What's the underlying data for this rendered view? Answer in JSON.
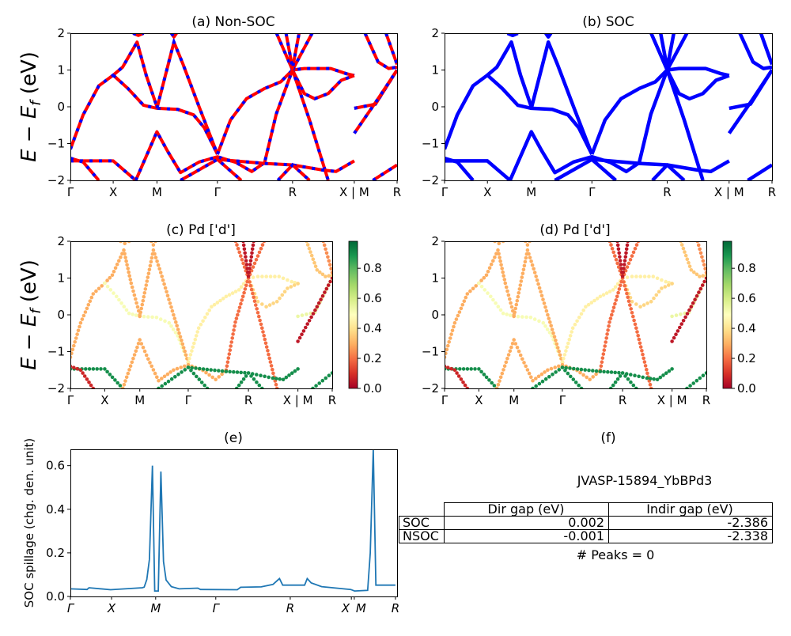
{
  "figure": {
    "energy_ylabel": {
      "main": "E − E",
      "sub": "f",
      "unit": " (eV)"
    }
  },
  "chart_data": {
    "kpath": {
      "labels": [
        "Γ",
        "X",
        "M",
        "Γ",
        "R",
        "X | M",
        "R"
      ],
      "positions": [
        0,
        0.131,
        0.265,
        0.45,
        0.68,
        0.869,
        1
      ]
    },
    "energy_axis": {
      "ylim": [
        -2,
        2
      ],
      "ticks": [
        "2",
        "1",
        "0",
        "−1",
        "−2"
      ]
    },
    "bands": [
      {
        "weight": 0.3,
        "points": [
          [
            0,
            -1.15
          ],
          [
            0.039,
            -0.22
          ],
          [
            0.087,
            0.57
          ],
          [
            0.131,
            0.86
          ],
          [
            0.16,
            1.08
          ],
          [
            0.204,
            1.76
          ],
          [
            0.232,
            0.86
          ],
          [
            0.265,
            0
          ]
        ]
      },
      {
        "weight": 0.52,
        "points": [
          [
            0.131,
            0.86
          ],
          [
            0.176,
            0.5
          ],
          [
            0.224,
            0.04
          ],
          [
            0.265,
            -0.04
          ],
          [
            0.329,
            -0.07
          ],
          [
            0.377,
            -0.22
          ],
          [
            0.41,
            -0.57
          ],
          [
            0.45,
            -1.29
          ]
        ]
      },
      {
        "weight": 0.3,
        "points": [
          [
            0.265,
            -0.04
          ],
          [
            0.317,
            1.76
          ],
          [
            0.345,
            1.15
          ],
          [
            0.394,
            0
          ],
          [
            0.45,
            -1.29
          ]
        ]
      },
      {
        "weight": 0.45,
        "points": [
          [
            0.45,
            -1.29
          ],
          [
            0.49,
            -0.36
          ],
          [
            0.539,
            0.22
          ],
          [
            0.595,
            0.5
          ],
          [
            0.644,
            0.68
          ],
          [
            0.68,
            1.0
          ],
          [
            0.716,
            1.04
          ],
          [
            0.797,
            1.04
          ],
          [
            0.845,
            0.9
          ],
          [
            0.869,
            0.85
          ]
        ]
      },
      {
        "weight": 0.38,
        "points": [
          [
            0.68,
            1.0
          ],
          [
            0.716,
            0.36
          ],
          [
            0.748,
            0.22
          ],
          [
            0.789,
            0.36
          ],
          [
            0.829,
            0.72
          ],
          [
            0.869,
            0.85
          ]
        ]
      },
      {
        "weight": 0.2,
        "points": [
          [
            0.631,
            2
          ],
          [
            0.68,
            1.0
          ],
          [
            0.732,
            -0.36
          ],
          [
            0.789,
            -2
          ]
        ]
      },
      {
        "weight": 0.2,
        "points": [
          [
            0.74,
            2
          ],
          [
            0.68,
            1.0
          ],
          [
            0.63,
            -0.2
          ],
          [
            0.595,
            -1.5
          ]
        ]
      },
      {
        "weight": 0.05,
        "points": [
          [
            0.66,
            2
          ],
          [
            0.68,
            1.05
          ],
          [
            0.7,
            2
          ]
        ]
      },
      {
        "weight": 0.92,
        "points": [
          [
            0,
            -1.47
          ],
          [
            0.131,
            -1.47
          ],
          [
            0.2,
            -2
          ]
        ]
      },
      {
        "weight": 0.08,
        "points": [
          [
            0,
            -1.4
          ],
          [
            0.039,
            -1.5
          ],
          [
            0.087,
            -2
          ]
        ]
      },
      {
        "weight": 0.3,
        "points": [
          [
            0.2,
            -2
          ],
          [
            0.265,
            -0.68
          ],
          [
            0.297,
            -1.2
          ],
          [
            0.337,
            -1.79
          ],
          [
            0.394,
            -1.5
          ],
          [
            0.45,
            -1.36
          ],
          [
            0.506,
            -1.51
          ],
          [
            0.555,
            -1.76
          ],
          [
            0.591,
            -1.54
          ]
        ]
      },
      {
        "weight": 0.92,
        "points": [
          [
            0.45,
            -1.43
          ],
          [
            0.595,
            -1.54
          ],
          [
            0.68,
            -1.58
          ],
          [
            0.773,
            -1.72
          ],
          [
            0.813,
            -1.76
          ],
          [
            0.869,
            -1.47
          ]
        ]
      },
      {
        "weight": 0.92,
        "points": [
          [
            0.337,
            -2
          ],
          [
            0.45,
            -1.43
          ],
          [
            0.523,
            -2
          ]
        ]
      },
      {
        "weight": 0.55,
        "points": [
          [
            0.869,
            -0.04
          ],
          [
            0.934,
            0.07
          ],
          [
            1,
            1.0
          ]
        ]
      },
      {
        "weight": 0.05,
        "points": [
          [
            0.869,
            -0.72
          ],
          [
            0.942,
            0.22
          ],
          [
            1,
            1.0
          ]
        ]
      },
      {
        "weight": 0.35,
        "points": [
          [
            0.902,
            2
          ],
          [
            0.942,
            1.22
          ],
          [
            0.974,
            1.04
          ],
          [
            1,
            1.08
          ]
        ]
      },
      {
        "weight": 0.25,
        "points": [
          [
            0.966,
            2
          ],
          [
            1,
            1.15
          ]
        ]
      },
      {
        "weight": 0.92,
        "points": [
          [
            0.926,
            -2
          ],
          [
            1,
            -1.58
          ]
        ]
      },
      {
        "weight": 0.92,
        "points": [
          [
            0.635,
            -2
          ],
          [
            0.68,
            -1.58
          ],
          [
            0.732,
            -2
          ]
        ]
      },
      {
        "weight": 0.3,
        "points": [
          [
            0.192,
            2
          ],
          [
            0.208,
            1.94
          ],
          [
            0.224,
            2
          ]
        ]
      },
      {
        "weight": 0.3,
        "points": [
          [
            0.309,
            2
          ],
          [
            0.317,
            1.9
          ],
          [
            0.325,
            2
          ]
        ]
      }
    ],
    "panels": [
      {
        "id": "a",
        "type": "line",
        "title": "(a) Non-SOC",
        "colors": [
          "#ff0000",
          "#0000ff"
        ]
      },
      {
        "id": "b",
        "type": "line",
        "title": "(b) SOC",
        "colors": [
          "#0000ff"
        ]
      },
      {
        "id": "c",
        "type": "scatter",
        "title": "(c)  Pd ['d']",
        "colormap": "RdYlGn",
        "colorbar_ticks": [
          "0.0",
          "0.2",
          "0.4",
          "0.6",
          "0.8"
        ],
        "clim": [
          0,
          0.98
        ]
      },
      {
        "id": "d",
        "type": "scatter",
        "title": "(d) Pd ['d']",
        "colormap": "RdYlGn",
        "colorbar_ticks": [
          "0.0",
          "0.2",
          "0.4",
          "0.6",
          "0.8"
        ],
        "clim": [
          0,
          0.98
        ]
      }
    ],
    "spillage": {
      "type": "line",
      "title": "(e)",
      "ylabel": "SOC spillage (chg. den. unit)",
      "ylim": [
        0,
        0.675
      ],
      "yticks": [
        "0.0",
        "0.2",
        "0.4",
        "0.6"
      ],
      "xtick_labels": [
        "Γ",
        "X",
        "M",
        "Γ",
        "R",
        "X",
        "M",
        "R"
      ],
      "xtick_positions": [
        0,
        0.126,
        0.261,
        0.445,
        0.673,
        0.86,
        0.869,
        0.995
      ],
      "color": "#1f77b4",
      "points": [
        [
          0,
          0.035
        ],
        [
          0.051,
          0.032
        ],
        [
          0.057,
          0.04
        ],
        [
          0.123,
          0.031
        ],
        [
          0.22,
          0.04
        ],
        [
          0.226,
          0.043
        ],
        [
          0.234,
          0.078
        ],
        [
          0.242,
          0.17
        ],
        [
          0.251,
          0.6
        ],
        [
          0.258,
          0.025
        ],
        [
          0.269,
          0.025
        ],
        [
          0.277,
          0.573
        ],
        [
          0.285,
          0.16
        ],
        [
          0.293,
          0.075
        ],
        [
          0.309,
          0.045
        ],
        [
          0.333,
          0.035
        ],
        [
          0.39,
          0.038
        ],
        [
          0.398,
          0.032
        ],
        [
          0.511,
          0.031
        ],
        [
          0.521,
          0.042
        ],
        [
          0.584,
          0.044
        ],
        [
          0.62,
          0.055
        ],
        [
          0.64,
          0.082
        ],
        [
          0.65,
          0.052
        ],
        [
          0.717,
          0.052
        ],
        [
          0.725,
          0.082
        ],
        [
          0.737,
          0.062
        ],
        [
          0.769,
          0.045
        ],
        [
          0.858,
          0.032
        ],
        [
          0.87,
          0.025
        ],
        [
          0.91,
          0.028
        ],
        [
          0.918,
          0.2
        ],
        [
          0.927,
          0.675
        ],
        [
          0.935,
          0.052
        ],
        [
          0.995,
          0.052
        ]
      ]
    },
    "table_panel": {
      "type": "table",
      "title": "(f)",
      "heading": "JVASP-15894_YbBPd3",
      "columns": [
        "",
        "Dir gap (eV)",
        "Indir gap (eV)"
      ],
      "rows": [
        {
          "label": "SOC",
          "dir": "0.002",
          "indir": "-2.386"
        },
        {
          "label": "NSOC",
          "dir": "-0.001",
          "indir": "-2.338"
        }
      ],
      "footer": "# Peaks = 0"
    }
  }
}
